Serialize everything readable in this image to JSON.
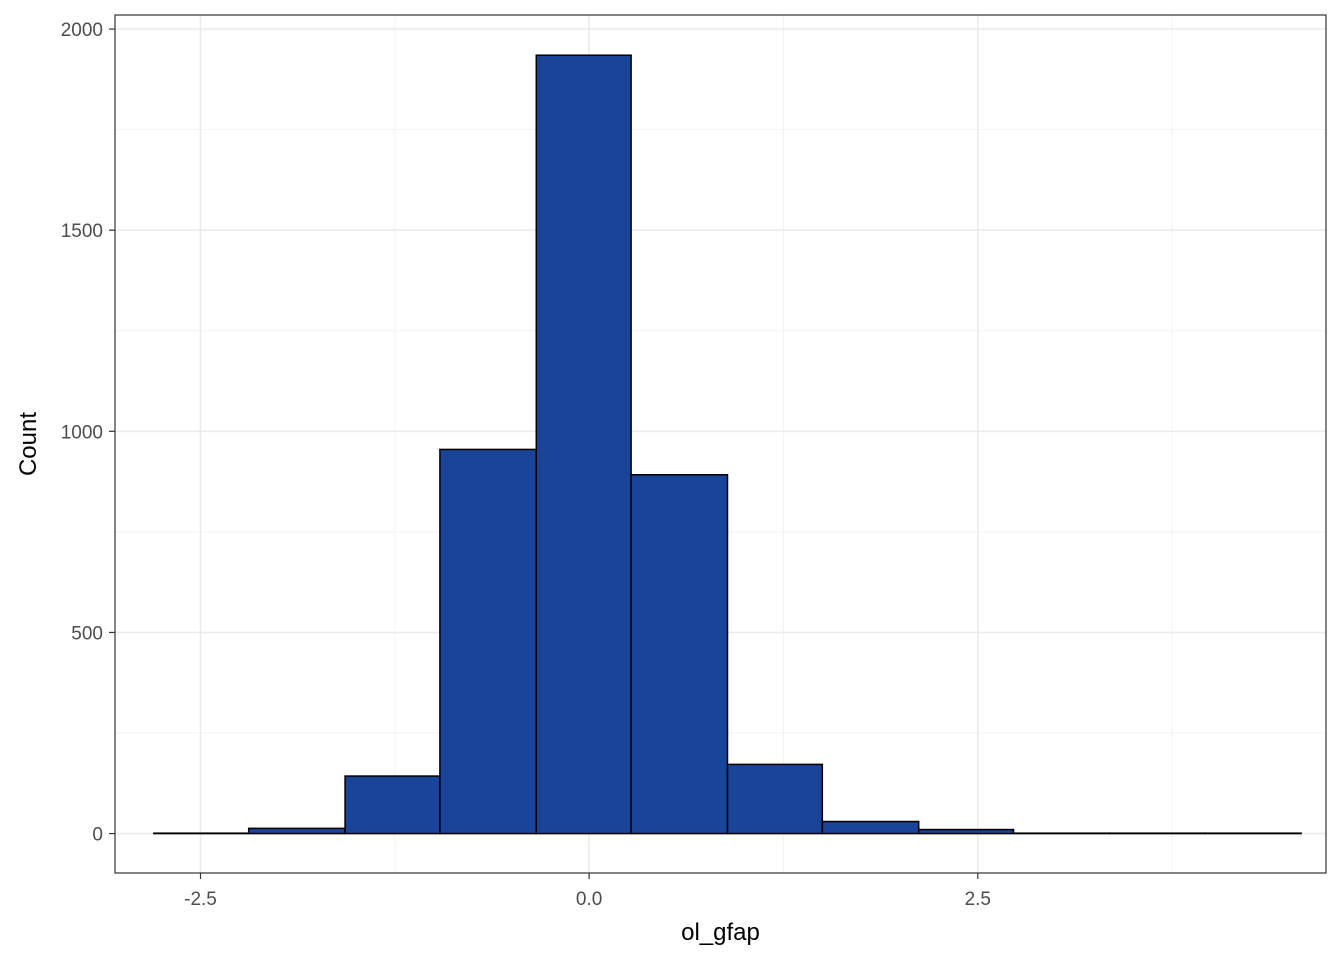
{
  "chart_data": {
    "type": "bar",
    "subtype": "histogram",
    "title": "",
    "xlabel": "ol_gfap",
    "ylabel": "Count",
    "xlim": [
      -3.05,
      4.74
    ],
    "ylim": [
      -98,
      2035
    ],
    "x_ticks": [
      -2.5,
      0.0,
      2.5
    ],
    "x_tick_labels": [
      "-2.5",
      "0.0",
      "2.5"
    ],
    "y_ticks": [
      0,
      500,
      1000,
      1500,
      2000
    ],
    "y_tick_labels": [
      "0",
      "500",
      "1000",
      "1500",
      "2000"
    ],
    "bins": [
      {
        "x0": -2.8,
        "x1": -2.19,
        "count": 1
      },
      {
        "x0": -2.19,
        "x1": -1.57,
        "count": 13
      },
      {
        "x0": -1.57,
        "x1": -0.96,
        "count": 143
      },
      {
        "x0": -0.96,
        "x1": -0.34,
        "count": 955
      },
      {
        "x0": -0.34,
        "x1": 0.27,
        "count": 1935
      },
      {
        "x0": 0.27,
        "x1": 0.89,
        "count": 892
      },
      {
        "x0": 0.89,
        "x1": 1.5,
        "count": 172
      },
      {
        "x0": 1.5,
        "x1": 2.12,
        "count": 30
      },
      {
        "x0": 2.12,
        "x1": 2.73,
        "count": 10
      },
      {
        "x0": 2.73,
        "x1": 3.35,
        "count": 1
      },
      {
        "x0": 3.35,
        "x1": 3.96,
        "count": 1
      },
      {
        "x0": 3.96,
        "x1": 4.58,
        "count": 1
      }
    ],
    "grid": true,
    "legend": "none",
    "bar_fill": "#1a4498",
    "bar_stroke": "#000000"
  }
}
